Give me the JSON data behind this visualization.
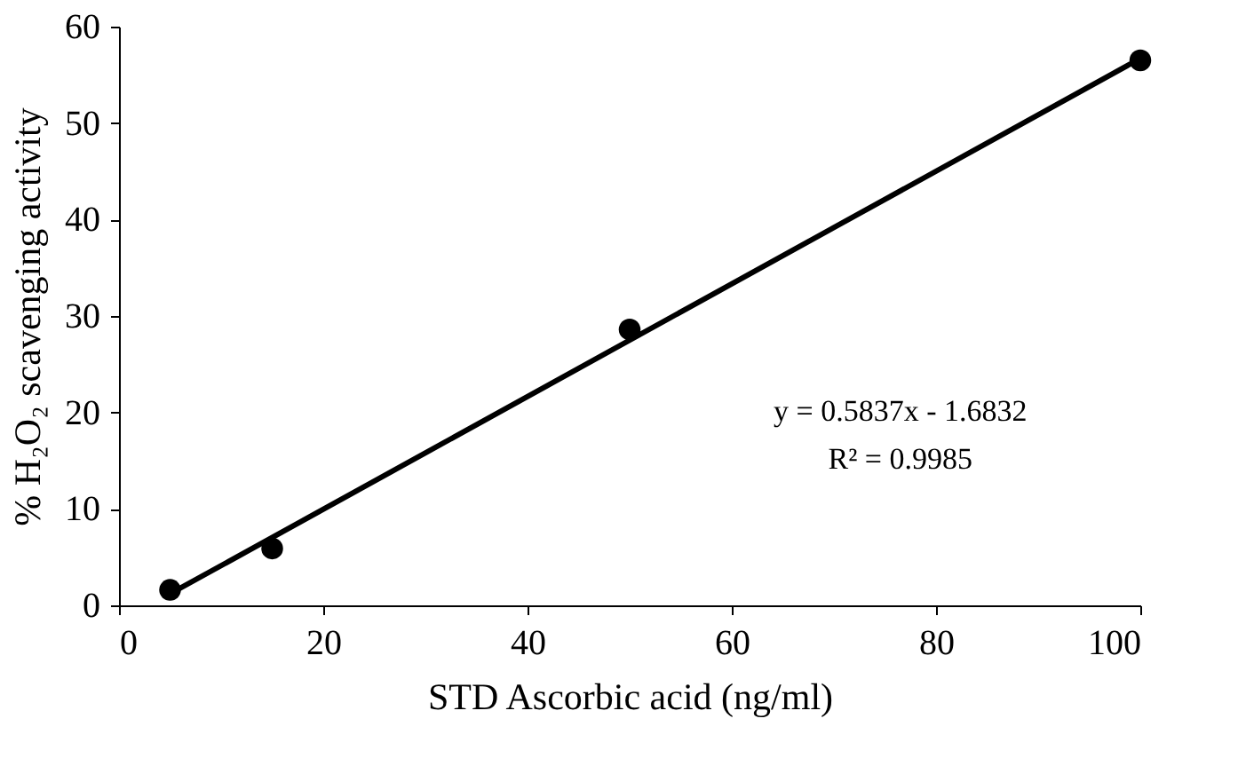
{
  "chart_data": {
    "type": "scatter",
    "xlabel": "STD Ascorbic acid (ng/ml)",
    "ylabel": "% H₂O₂ scavenging activity",
    "xlim": [
      0,
      100
    ],
    "xticks": [
      0,
      20,
      40,
      60,
      80,
      100
    ],
    "ylim": [
      0,
      60
    ],
    "yticks": [
      0,
      10,
      20,
      30,
      40,
      50,
      60
    ],
    "series": [
      {
        "color": "#000000",
        "marker": "circle",
        "x": [
          5,
          15,
          50,
          100
        ],
        "values": [
          1.6,
          5.9,
          28.6,
          56.5
        ]
      },
      {
        "type": "line",
        "color": "#000000",
        "line_style": "solid",
        "x": [
          5,
          100
        ],
        "values": [
          1.2,
          56.7
        ]
      }
    ],
    "annotations": [
      "y = 0.5837x - 1.6832",
      "R² = 0.9985"
    ]
  }
}
